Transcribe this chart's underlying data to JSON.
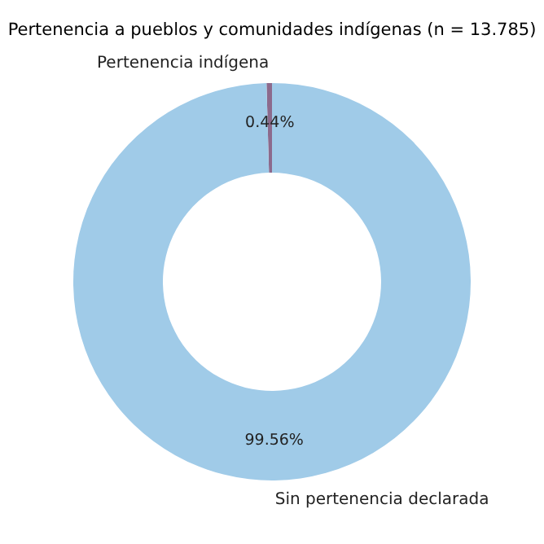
{
  "chart_data": {
    "type": "donut",
    "title": "Pertenencia a pueblos y comunidades indígenas (n = 13.785)",
    "categories": [
      "Pertenencia indígena",
      "Sin pertenencia declarada"
    ],
    "values": [
      0.44,
      99.56
    ],
    "colors": [
      "#8c6a8c",
      "#a0cbe8"
    ],
    "value_labels": [
      "0.44%",
      "99.56%"
    ],
    "legend": false
  }
}
